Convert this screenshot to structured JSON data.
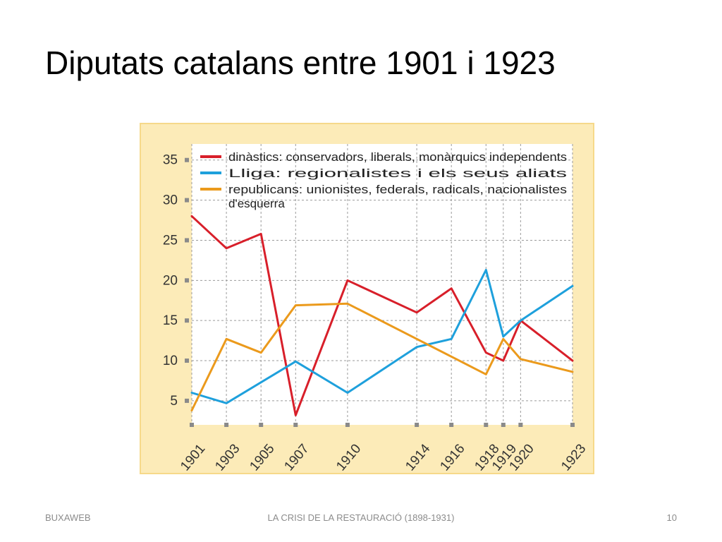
{
  "slide": {
    "title": "Diputats catalans entre 1901 i 1923",
    "footer_left": "BUXAWEB",
    "footer_center": "LA CRISI DE LA RESTAURACIÓ (1898-1931)",
    "footer_right": "10"
  },
  "chart_data": {
    "type": "line",
    "title": "",
    "xlabel": "",
    "ylabel": "",
    "x": [
      1901,
      1903,
      1905,
      1907,
      1910,
      1914,
      1916,
      1918,
      1919,
      1920,
      1923
    ],
    "x_tick_labels": [
      "1901",
      "1903",
      "1905",
      "1907",
      "1910",
      "1914",
      "1916",
      "1918",
      "1919",
      "1920",
      "1923"
    ],
    "y_ticks": [
      5,
      10,
      15,
      20,
      25,
      30,
      35
    ],
    "ylim": [
      2,
      37
    ],
    "grid": true,
    "legend_position": "top",
    "series": [
      {
        "name": "dinàstics: conservadors, liberals, monàrquics independents",
        "color": "#d81f2a",
        "x": [
          1901,
          1903,
          1905,
          1907,
          1910,
          1914,
          1916,
          1918,
          1919,
          1920,
          1923
        ],
        "values": [
          28,
          24,
          25.8,
          3.2,
          20,
          16,
          19,
          11,
          10,
          15,
          10
        ]
      },
      {
        "name": "Lliga: regionalistes i els seus aliats",
        "color": "#1ea0dc",
        "x": [
          1901,
          1903,
          1907,
          1910,
          1914,
          1916,
          1918,
          1919,
          1920,
          1923
        ],
        "values": [
          6,
          4.7,
          9.9,
          6,
          11.7,
          12.7,
          21.3,
          13,
          15,
          19.3
        ]
      },
      {
        "name_lines": [
          "republicans: unionistes, federals, radicals, nacionalistes",
          "d'esquerra"
        ],
        "color": "#eb9a1c",
        "x": [
          1901,
          1903,
          1905,
          1907,
          1910,
          1914,
          1916,
          1918,
          1919,
          1920,
          1923
        ],
        "values": [
          3.8,
          12.7,
          11,
          16.9,
          17.1,
          12.7,
          10.5,
          8.3,
          12.7,
          10.2,
          8.6
        ]
      }
    ]
  }
}
